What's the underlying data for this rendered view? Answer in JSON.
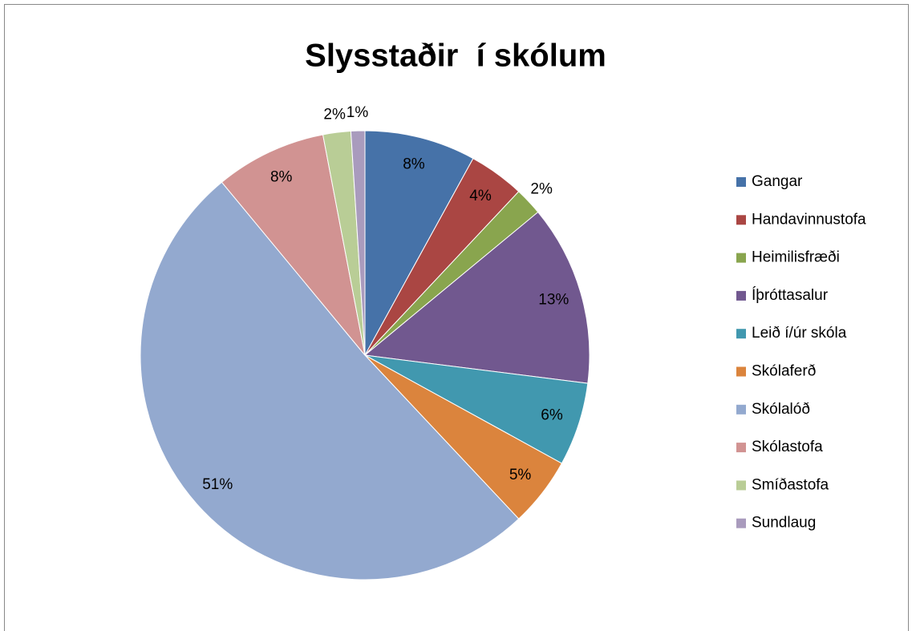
{
  "chart_data": {
    "type": "pie",
    "title": "Slysstaðir  í skólum",
    "categories": [
      "Gangar",
      "Handavinnustofa",
      "Heimilisfræði",
      "Íþróttasalur",
      "Leið í/úr skóla",
      "Skólaferð",
      "Skólalóð",
      "Skólastofa",
      "Smíðastofa",
      "Sundlaug"
    ],
    "values": [
      8,
      4,
      2,
      13,
      6,
      5,
      51,
      8,
      2,
      1
    ],
    "value_labels": [
      "8%",
      "4%",
      "2%",
      "13%",
      "6%",
      "5%",
      "51%",
      "8%",
      "2%",
      "1%"
    ],
    "colors": [
      "#4672a8",
      "#aa4643",
      "#89a54e",
      "#71588f",
      "#4198af",
      "#db843d",
      "#93a9cf",
      "#d19392",
      "#b9cd96",
      "#a99bbd"
    ],
    "legend": "right"
  }
}
